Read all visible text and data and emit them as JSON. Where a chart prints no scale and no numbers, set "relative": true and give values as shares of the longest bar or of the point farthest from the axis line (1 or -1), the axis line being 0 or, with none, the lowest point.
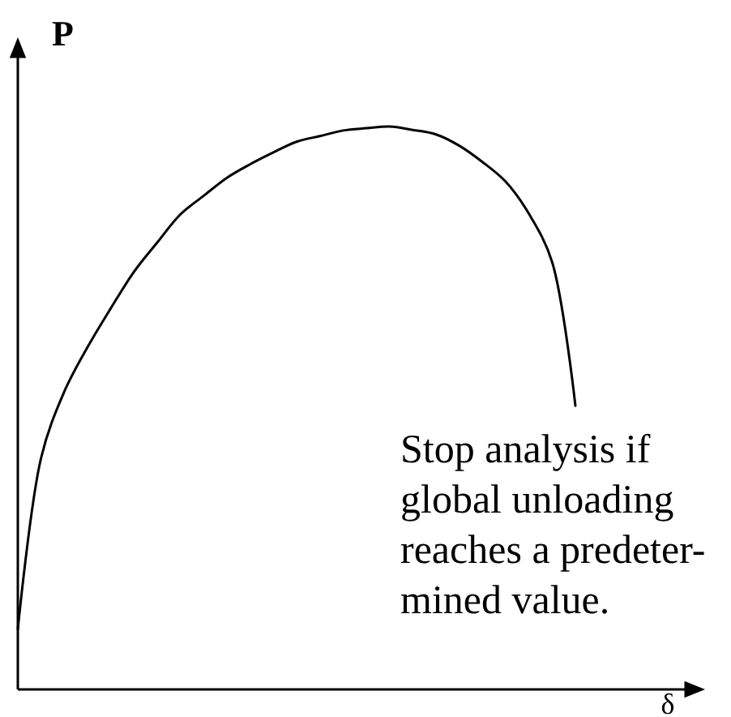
{
  "chart_data": {
    "type": "line",
    "xlabel": "δ",
    "ylabel": "P",
    "relative": true,
    "categories": [
      null,
      null,
      null,
      null,
      null,
      null,
      null,
      null,
      null,
      null,
      null,
      null,
      null,
      null,
      null,
      null,
      null,
      null,
      null,
      null,
      null,
      null,
      null,
      null,
      null
    ],
    "series": [
      {
        "color": "#000000",
        "values": [
          0.107,
          0.411,
          0.529,
          0.608,
          0.677,
          0.742,
          0.794,
          0.844,
          0.877,
          0.909,
          0.933,
          0.954,
          0.973,
          0.983,
          0.993,
          0.997,
          1.0,
          0.994,
          0.986,
          0.966,
          0.937,
          0.902,
          0.845,
          0.759,
          0.504
        ]
      }
    ],
    "annotations": [
      "Stop analysis if\nglobal unloading\nreaches a predeter-\nmined value."
    ]
  }
}
